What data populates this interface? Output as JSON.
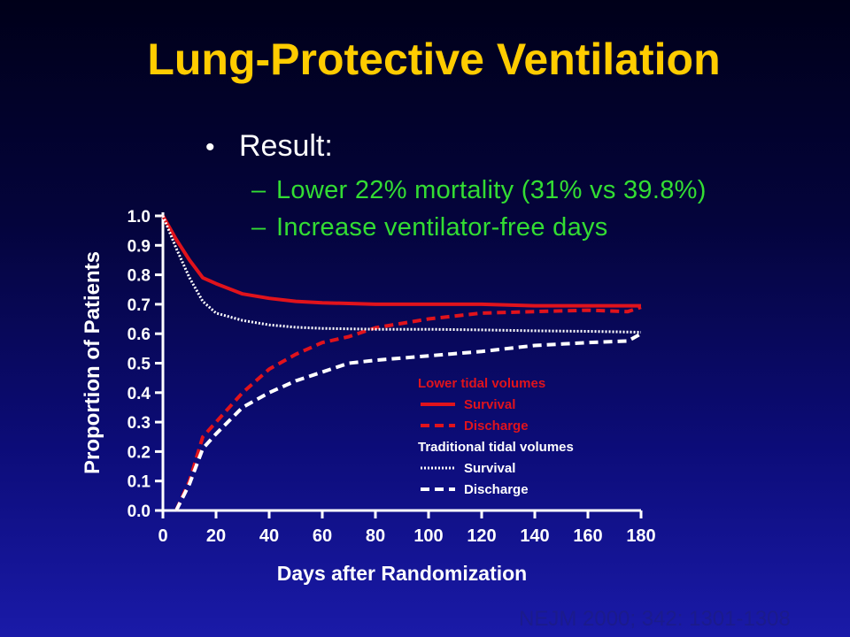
{
  "slide": {
    "title": "Lung-Protective Ventilation",
    "bullet": "Result:",
    "sub_bullets": [
      "Lower 22% mortality (31% vs 39.8%)",
      "Increase ventilator-free days"
    ],
    "citation": "NEJM 2000; 342: 1301-1308"
  },
  "colors": {
    "title": "#ffcc00",
    "sub_bullet": "#33dd33",
    "lower_tidal": "#e0131c",
    "traditional_tidal": "#ffffff",
    "background_top": "#000019",
    "background_bottom": "#1a1aa8"
  },
  "chart_data": {
    "type": "line",
    "xlabel": "Days after Randomization",
    "ylabel": "Proportion of Patients",
    "xlim": [
      0,
      180
    ],
    "ylim": [
      0,
      1.0
    ],
    "x_ticks": [
      0,
      20,
      40,
      60,
      80,
      100,
      120,
      140,
      160,
      180
    ],
    "y_ticks": [
      "0.0",
      "0.1",
      "0.2",
      "0.3",
      "0.4",
      "0.5",
      "0.6",
      "0.7",
      "0.8",
      "0.9",
      "1.0"
    ],
    "grid": false,
    "legend": {
      "placement": "bottom-right",
      "groups": [
        {
          "heading": "Lower tidal volumes",
          "entries": [
            "Survival",
            "Discharge"
          ]
        },
        {
          "heading": "Traditional tidal volumes",
          "entries": [
            "Survival",
            "Discharge"
          ]
        }
      ]
    },
    "series": [
      {
        "group": "Lower tidal volumes",
        "name": "Survival",
        "style": "solid",
        "color": "#e0131c",
        "points": [
          [
            0,
            1.0
          ],
          [
            5,
            0.92
          ],
          [
            10,
            0.85
          ],
          [
            15,
            0.79
          ],
          [
            20,
            0.77
          ],
          [
            30,
            0.735
          ],
          [
            40,
            0.72
          ],
          [
            50,
            0.71
          ],
          [
            60,
            0.705
          ],
          [
            80,
            0.7
          ],
          [
            100,
            0.7
          ],
          [
            120,
            0.7
          ],
          [
            140,
            0.695
          ],
          [
            160,
            0.695
          ],
          [
            180,
            0.695
          ]
        ]
      },
      {
        "group": "Lower tidal volumes",
        "name": "Discharge",
        "style": "dashed",
        "color": "#e0131c",
        "points": [
          [
            5,
            0.0
          ],
          [
            10,
            0.1
          ],
          [
            15,
            0.25
          ],
          [
            20,
            0.3
          ],
          [
            30,
            0.4
          ],
          [
            40,
            0.48
          ],
          [
            50,
            0.53
          ],
          [
            60,
            0.57
          ],
          [
            70,
            0.59
          ],
          [
            80,
            0.62
          ],
          [
            90,
            0.635
          ],
          [
            100,
            0.65
          ],
          [
            120,
            0.67
          ],
          [
            140,
            0.675
          ],
          [
            160,
            0.68
          ],
          [
            175,
            0.675
          ],
          [
            180,
            0.69
          ]
        ]
      },
      {
        "group": "Traditional tidal volumes",
        "name": "Survival",
        "style": "dotted",
        "color": "#ffffff",
        "points": [
          [
            0,
            1.0
          ],
          [
            5,
            0.89
          ],
          [
            10,
            0.79
          ],
          [
            15,
            0.71
          ],
          [
            20,
            0.67
          ],
          [
            30,
            0.645
          ],
          [
            40,
            0.63
          ],
          [
            50,
            0.622
          ],
          [
            60,
            0.618
          ],
          [
            80,
            0.615
          ],
          [
            100,
            0.615
          ],
          [
            120,
            0.613
          ],
          [
            140,
            0.61
          ],
          [
            160,
            0.608
          ],
          [
            180,
            0.605
          ]
        ]
      },
      {
        "group": "Traditional tidal volumes",
        "name": "Discharge",
        "style": "dashed",
        "color": "#ffffff",
        "points": [
          [
            5,
            0.0
          ],
          [
            10,
            0.09
          ],
          [
            15,
            0.21
          ],
          [
            20,
            0.26
          ],
          [
            30,
            0.35
          ],
          [
            40,
            0.4
          ],
          [
            50,
            0.44
          ],
          [
            60,
            0.47
          ],
          [
            70,
            0.5
          ],
          [
            80,
            0.51
          ],
          [
            100,
            0.525
          ],
          [
            120,
            0.54
          ],
          [
            140,
            0.56
          ],
          [
            160,
            0.57
          ],
          [
            175,
            0.575
          ],
          [
            180,
            0.6
          ]
        ]
      }
    ]
  }
}
